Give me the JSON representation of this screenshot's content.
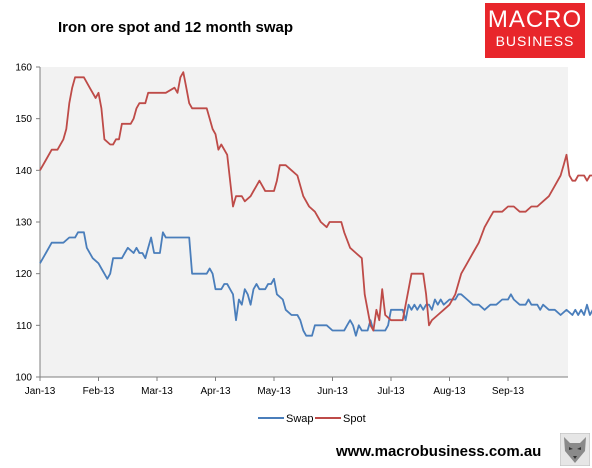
{
  "title": "Iron ore spot and 12 month swap",
  "logo": {
    "line1": "MACRO",
    "line2": "BUSINESS"
  },
  "footer_url": "www.macrobusiness.com.au",
  "colors": {
    "swap": "#4a7ebb",
    "spot": "#be4b48",
    "plot_bg": "#f2f2f2"
  },
  "chart_data": {
    "type": "line",
    "title": "Iron ore spot and 12 month swap",
    "ylim": [
      100,
      160
    ],
    "yticks": [
      "100",
      "110",
      "120",
      "130",
      "140",
      "150",
      "160"
    ],
    "xtick_labels": [
      "Jan-13",
      "Feb-13",
      "Mar-13",
      "Apr-13",
      "May-13",
      "Jun-13",
      "Jul-13",
      "Aug-13",
      "Sep-13"
    ],
    "grid": false,
    "legend_position": "bottom",
    "x_unit": "month index from Jan-13 tick",
    "series": [
      {
        "name": "Swap",
        "color": "#4a7ebb",
        "points": [
          [
            0.0,
            122
          ],
          [
            0.1,
            124
          ],
          [
            0.2,
            126
          ],
          [
            0.4,
            126
          ],
          [
            0.5,
            127
          ],
          [
            0.6,
            127
          ],
          [
            0.65,
            128
          ],
          [
            0.75,
            128
          ],
          [
            0.8,
            125
          ],
          [
            0.9,
            123
          ],
          [
            1.0,
            122
          ],
          [
            1.05,
            121
          ],
          [
            1.1,
            120
          ],
          [
            1.15,
            119
          ],
          [
            1.2,
            120
          ],
          [
            1.25,
            123
          ],
          [
            1.4,
            123
          ],
          [
            1.45,
            124
          ],
          [
            1.5,
            125
          ],
          [
            1.6,
            124
          ],
          [
            1.65,
            125
          ],
          [
            1.7,
            124
          ],
          [
            1.75,
            124
          ],
          [
            1.8,
            123
          ],
          [
            1.85,
            125
          ],
          [
            1.9,
            127
          ],
          [
            1.95,
            124
          ],
          [
            2.05,
            124
          ],
          [
            2.1,
            128
          ],
          [
            2.15,
            127
          ],
          [
            2.55,
            127
          ],
          [
            2.6,
            120
          ],
          [
            2.85,
            120
          ],
          [
            2.9,
            121
          ],
          [
            2.95,
            120
          ],
          [
            3.0,
            117
          ],
          [
            3.1,
            117
          ],
          [
            3.15,
            118
          ],
          [
            3.2,
            118
          ],
          [
            3.25,
            117
          ],
          [
            3.3,
            116
          ],
          [
            3.35,
            111
          ],
          [
            3.4,
            115
          ],
          [
            3.45,
            114
          ],
          [
            3.5,
            117
          ],
          [
            3.55,
            116
          ],
          [
            3.6,
            114
          ],
          [
            3.65,
            117
          ],
          [
            3.7,
            118
          ],
          [
            3.75,
            117
          ],
          [
            3.85,
            117
          ],
          [
            3.9,
            118
          ],
          [
            3.95,
            118
          ],
          [
            4.0,
            119
          ],
          [
            4.05,
            116
          ],
          [
            4.15,
            115
          ],
          [
            4.2,
            113
          ],
          [
            4.3,
            112
          ],
          [
            4.4,
            112
          ],
          [
            4.45,
            111
          ],
          [
            4.5,
            109
          ],
          [
            4.55,
            108
          ],
          [
            4.65,
            108
          ],
          [
            4.7,
            110
          ],
          [
            4.8,
            110
          ],
          [
            4.9,
            110
          ],
          [
            5.0,
            109
          ],
          [
            5.1,
            109
          ],
          [
            5.2,
            109
          ],
          [
            5.25,
            110
          ],
          [
            5.3,
            111
          ],
          [
            5.35,
            110
          ],
          [
            5.4,
            108
          ],
          [
            5.45,
            110
          ],
          [
            5.5,
            109
          ],
          [
            5.6,
            109
          ],
          [
            5.65,
            111
          ],
          [
            5.7,
            109
          ],
          [
            5.8,
            109
          ],
          [
            5.9,
            109
          ],
          [
            5.95,
            110
          ],
          [
            6.0,
            113
          ],
          [
            6.2,
            113
          ],
          [
            6.25,
            111
          ],
          [
            6.3,
            114
          ],
          [
            6.35,
            113
          ],
          [
            6.4,
            114
          ],
          [
            6.45,
            113
          ],
          [
            6.5,
            114
          ],
          [
            6.55,
            113
          ],
          [
            6.6,
            114
          ],
          [
            6.65,
            114
          ],
          [
            6.7,
            113
          ],
          [
            6.75,
            115
          ],
          [
            6.8,
            114
          ],
          [
            6.85,
            115
          ],
          [
            6.9,
            114
          ],
          [
            7.0,
            115
          ],
          [
            7.1,
            115
          ],
          [
            7.15,
            116
          ],
          [
            7.2,
            116
          ],
          [
            7.3,
            115
          ],
          [
            7.4,
            114
          ],
          [
            7.5,
            114
          ],
          [
            7.6,
            113
          ],
          [
            7.7,
            114
          ],
          [
            7.8,
            114
          ],
          [
            7.9,
            115
          ],
          [
            8.0,
            115
          ],
          [
            8.05,
            116
          ],
          [
            8.1,
            115
          ],
          [
            8.2,
            114
          ],
          [
            8.3,
            114
          ],
          [
            8.35,
            115
          ],
          [
            8.4,
            114
          ],
          [
            8.5,
            114
          ],
          [
            8.55,
            113
          ],
          [
            8.6,
            114
          ],
          [
            8.7,
            113
          ],
          [
            8.8,
            113
          ],
          [
            8.9,
            112
          ],
          [
            9.0,
            113
          ],
          [
            9.1,
            112
          ],
          [
            9.15,
            113
          ],
          [
            9.2,
            112
          ],
          [
            9.25,
            113
          ],
          [
            9.3,
            112
          ],
          [
            9.35,
            114
          ],
          [
            9.4,
            112
          ],
          [
            9.45,
            113
          ],
          [
            9.5,
            114
          ],
          [
            9.55,
            113
          ],
          [
            9.6,
            113
          ],
          [
            9.65,
            113
          ],
          [
            9.7,
            112
          ],
          [
            9.8,
            114
          ],
          [
            9.85,
            113
          ],
          [
            9.95,
            113
          ],
          [
            10.0,
            112
          ]
        ]
      },
      {
        "name": "Spot",
        "color": "#be4b48",
        "points": [
          [
            0.0,
            140
          ],
          [
            0.1,
            142
          ],
          [
            0.2,
            144
          ],
          [
            0.3,
            144
          ],
          [
            0.4,
            146
          ],
          [
            0.45,
            148
          ],
          [
            0.5,
            153
          ],
          [
            0.55,
            156
          ],
          [
            0.6,
            158
          ],
          [
            0.75,
            158
          ],
          [
            0.85,
            156
          ],
          [
            0.95,
            154
          ],
          [
            1.0,
            155
          ],
          [
            1.05,
            152
          ],
          [
            1.1,
            146
          ],
          [
            1.2,
            145
          ],
          [
            1.25,
            145
          ],
          [
            1.3,
            146
          ],
          [
            1.35,
            146
          ],
          [
            1.4,
            149
          ],
          [
            1.55,
            149
          ],
          [
            1.6,
            150
          ],
          [
            1.65,
            152
          ],
          [
            1.7,
            153
          ],
          [
            1.8,
            153
          ],
          [
            1.85,
            155
          ],
          [
            1.95,
            155
          ],
          [
            2.0,
            155
          ],
          [
            2.15,
            155
          ],
          [
            2.3,
            156
          ],
          [
            2.35,
            155
          ],
          [
            2.4,
            158
          ],
          [
            2.45,
            159
          ],
          [
            2.5,
            156
          ],
          [
            2.55,
            153
          ],
          [
            2.6,
            152
          ],
          [
            2.85,
            152
          ],
          [
            2.9,
            150
          ],
          [
            2.95,
            148
          ],
          [
            3.0,
            147
          ],
          [
            3.05,
            144
          ],
          [
            3.1,
            145
          ],
          [
            3.2,
            143
          ],
          [
            3.25,
            138
          ],
          [
            3.3,
            133
          ],
          [
            3.35,
            135
          ],
          [
            3.45,
            135
          ],
          [
            3.5,
            134
          ],
          [
            3.6,
            135
          ],
          [
            3.65,
            136
          ],
          [
            3.7,
            137
          ],
          [
            3.75,
            138
          ],
          [
            3.8,
            137
          ],
          [
            3.85,
            136
          ],
          [
            3.95,
            136
          ],
          [
            4.0,
            136
          ],
          [
            4.05,
            138
          ],
          [
            4.1,
            141
          ],
          [
            4.2,
            141
          ],
          [
            4.3,
            140
          ],
          [
            4.4,
            139
          ],
          [
            4.45,
            137
          ],
          [
            4.5,
            135
          ],
          [
            4.6,
            133
          ],
          [
            4.7,
            132
          ],
          [
            4.8,
            130
          ],
          [
            4.9,
            129
          ],
          [
            4.95,
            130
          ],
          [
            5.15,
            130
          ],
          [
            5.2,
            128
          ],
          [
            5.3,
            125
          ],
          [
            5.4,
            124
          ],
          [
            5.5,
            123
          ],
          [
            5.55,
            116
          ],
          [
            5.6,
            113
          ],
          [
            5.65,
            110
          ],
          [
            5.7,
            109
          ],
          [
            5.75,
            113
          ],
          [
            5.8,
            111
          ],
          [
            5.85,
            117
          ],
          [
            5.9,
            112
          ],
          [
            6.0,
            111
          ],
          [
            6.1,
            111
          ],
          [
            6.2,
            111
          ],
          [
            6.3,
            117
          ],
          [
            6.35,
            120
          ],
          [
            6.55,
            120
          ],
          [
            6.6,
            116
          ],
          [
            6.65,
            110
          ],
          [
            6.7,
            111
          ],
          [
            6.8,
            112
          ],
          [
            6.9,
            113
          ],
          [
            7.0,
            114
          ],
          [
            7.1,
            116
          ],
          [
            7.2,
            120
          ],
          [
            7.3,
            122
          ],
          [
            7.4,
            124
          ],
          [
            7.5,
            126
          ],
          [
            7.6,
            129
          ],
          [
            7.7,
            131
          ],
          [
            7.75,
            132
          ],
          [
            7.9,
            132
          ],
          [
            8.0,
            133
          ],
          [
            8.05,
            133
          ],
          [
            8.1,
            133
          ],
          [
            8.2,
            132
          ],
          [
            8.3,
            132
          ],
          [
            8.4,
            133
          ],
          [
            8.5,
            133
          ],
          [
            8.6,
            134
          ],
          [
            8.7,
            135
          ],
          [
            8.8,
            137
          ],
          [
            8.9,
            139
          ],
          [
            8.95,
            141
          ],
          [
            9.0,
            143
          ],
          [
            9.05,
            139
          ],
          [
            9.1,
            138
          ],
          [
            9.15,
            138
          ],
          [
            9.2,
            139
          ],
          [
            9.3,
            139
          ],
          [
            9.35,
            138
          ],
          [
            9.4,
            139
          ],
          [
            9.5,
            139
          ],
          [
            9.6,
            139
          ],
          [
            9.7,
            138
          ],
          [
            9.8,
            137
          ],
          [
            9.85,
            134
          ],
          [
            9.9,
            133
          ],
          [
            9.95,
            131
          ],
          [
            10.0,
            132
          ]
        ]
      }
    ]
  }
}
